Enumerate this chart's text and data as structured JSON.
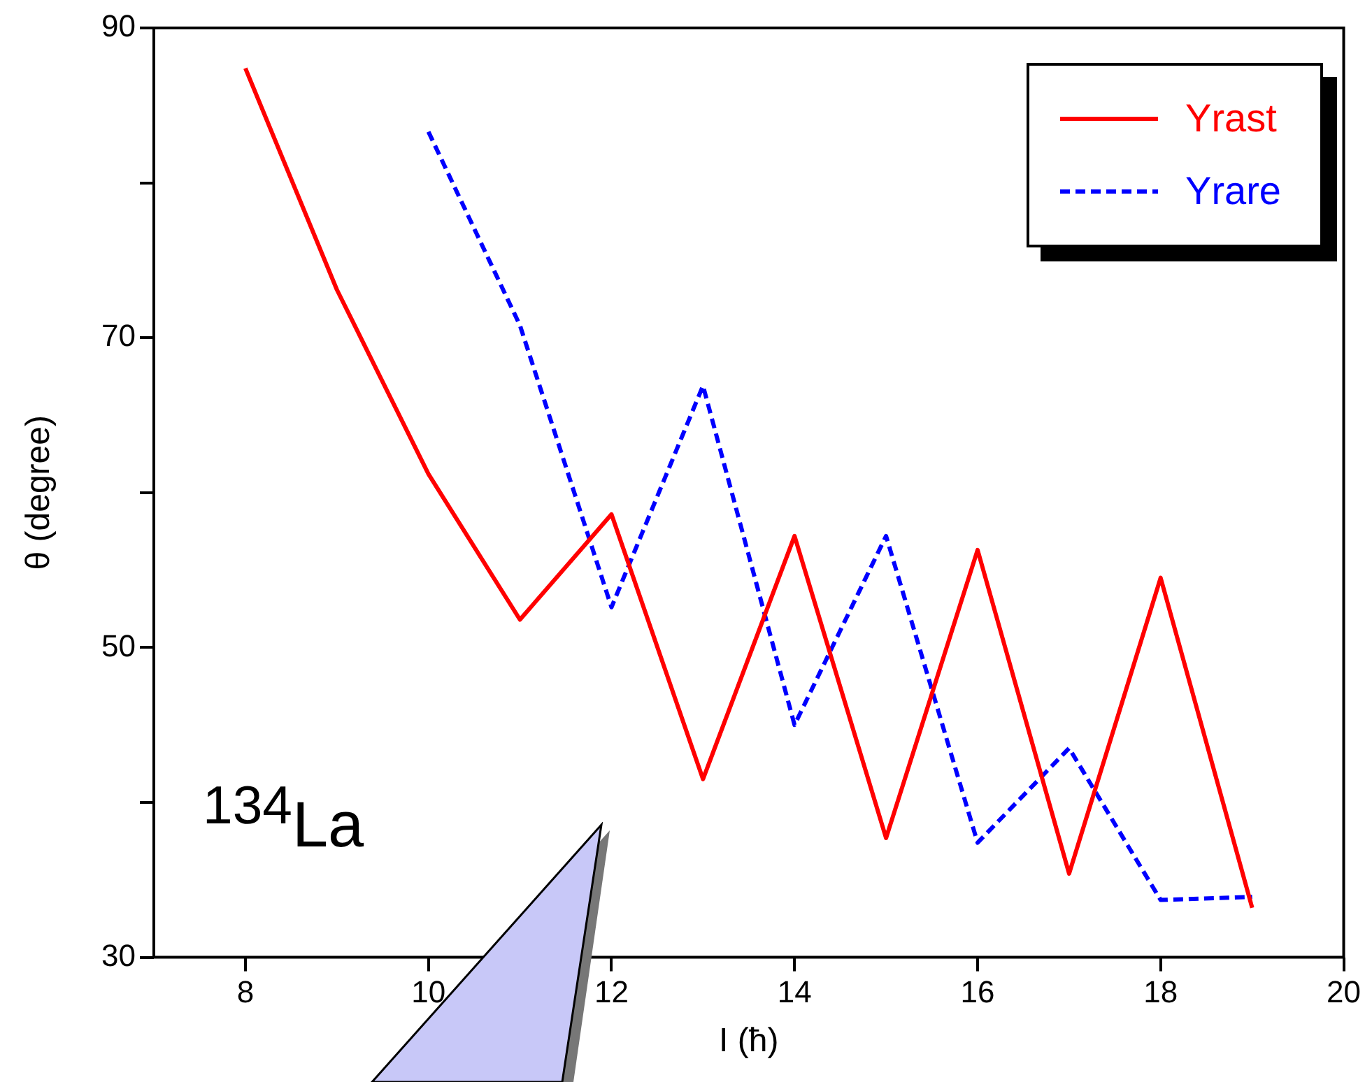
{
  "chart_data": {
    "type": "line",
    "xlabel": "I (ħ)",
    "ylabel": "θ (degree)",
    "annotations": [
      "$^{134}$La"
    ],
    "xlim": [
      7,
      20
    ],
    "xticks": [
      8,
      10,
      12,
      14,
      16,
      18,
      20
    ],
    "ylim": [
      30,
      90
    ],
    "yticks": [
      30,
      {
        "value": 40,
        "label": null
      },
      50,
      {
        "value": 60,
        "label": null
      },
      70,
      {
        "value": 80,
        "label": null
      },
      90
    ],
    "grid": false,
    "legend": "top right",
    "marker": "none",
    "series": [
      {
        "name": "Yrast",
        "color": "#ff0000",
        "line_style": "solid",
        "x": [
          8,
          9,
          10,
          11,
          12,
          13,
          14,
          15,
          16,
          17,
          18,
          19
        ],
        "values": [
          87.4,
          73.1,
          61.2,
          51.8,
          58.6,
          41.5,
          57.2,
          37.7,
          56.3,
          35.4,
          54.5,
          33.2
        ]
      },
      {
        "name": "Yrare",
        "color": "#0000ff",
        "line_style": "dashed",
        "x": [
          10,
          11,
          12,
          13,
          14,
          15,
          16,
          17,
          18,
          19
        ],
        "values": [
          83.3,
          70.8,
          52.6,
          66.9,
          45.0,
          57.2,
          37.4,
          43.5,
          33.7,
          33.9
        ]
      }
    ]
  }
}
